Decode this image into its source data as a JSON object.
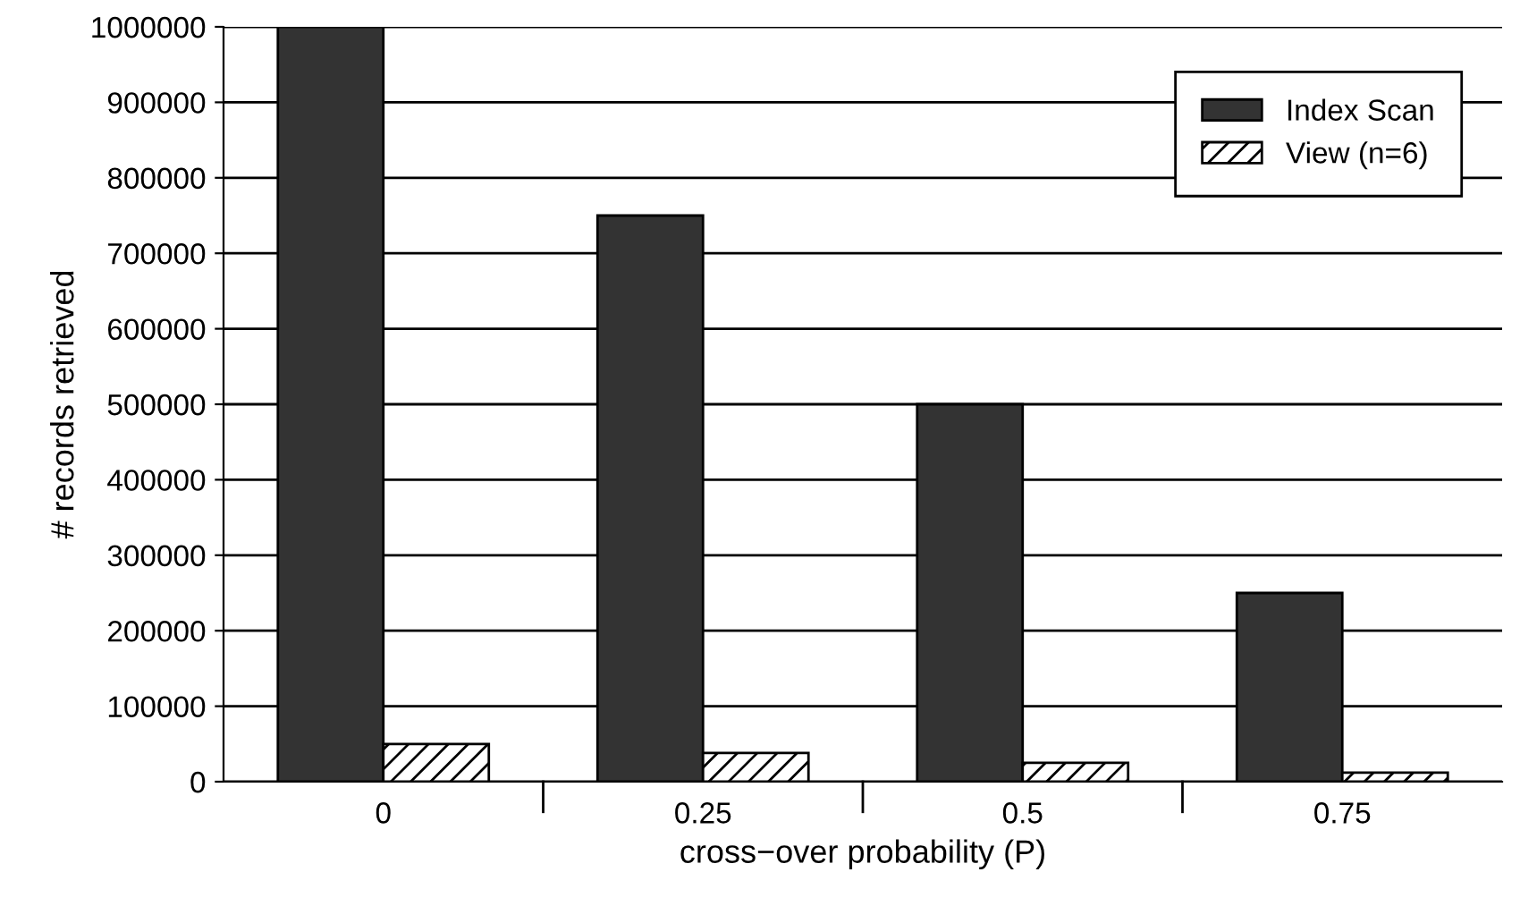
{
  "chart_data": {
    "type": "bar",
    "xlabel": "cross−over probability (P)",
    "ylabel": "# records retrieved",
    "categories": [
      "0",
      "0.25",
      "0.5",
      "0.75"
    ],
    "series": [
      {
        "name": "Index Scan",
        "color": "#333333",
        "values": [
          1000000,
          750000,
          500000,
          250000
        ]
      },
      {
        "name": "View (n=6)",
        "color": "#000000",
        "values": [
          50000,
          38000,
          25000,
          12000
        ]
      }
    ],
    "ylim": [
      0,
      1000000
    ],
    "yticks": [
      0,
      100000,
      200000,
      300000,
      400000,
      500000,
      600000,
      700000,
      800000,
      900000,
      1000000
    ],
    "grid": "y",
    "legend": "top right"
  }
}
